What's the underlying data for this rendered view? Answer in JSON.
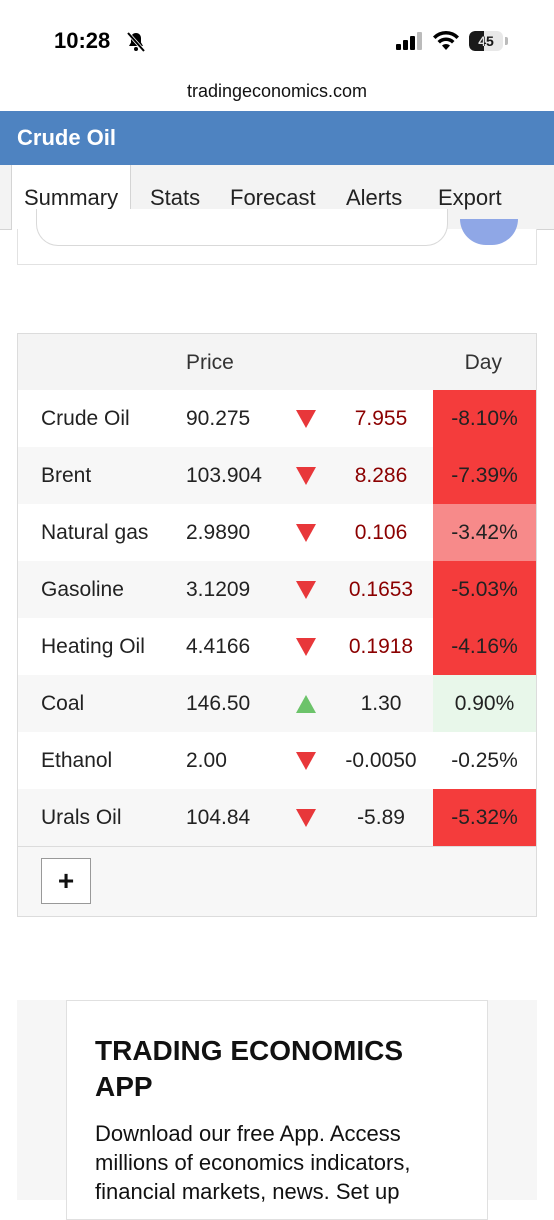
{
  "status_bar": {
    "time": "10:28",
    "battery": "45",
    "battery_level": 0.45
  },
  "browser": {
    "url": "tradingeconomics.com"
  },
  "header": {
    "title": "Crude Oil"
  },
  "tabs": [
    {
      "label": "Summary",
      "active": true
    },
    {
      "label": "Stats"
    },
    {
      "label": "Forecast"
    },
    {
      "label": "Alerts"
    },
    {
      "label": "Export"
    }
  ],
  "table": {
    "headers": {
      "price": "Price",
      "day": "Day"
    },
    "rows": [
      {
        "name": "Crude Oil",
        "price": "90.275",
        "direction": "down",
        "change": "7.955",
        "pct": "-8.10%",
        "pct_bg": "#f43c3c",
        "change_color": "#8b0000"
      },
      {
        "name": "Brent",
        "price": "103.904",
        "direction": "down",
        "change": "8.286",
        "pct": "-7.39%",
        "pct_bg": "#f43c3c",
        "change_color": "#8b0000"
      },
      {
        "name": "Natural gas",
        "price": "2.9890",
        "direction": "down",
        "change": "0.106",
        "pct": "-3.42%",
        "pct_bg": "#f78a8a",
        "change_color": "#8b0000"
      },
      {
        "name": "Gasoline",
        "price": "3.1209",
        "direction": "down",
        "change": "0.1653",
        "pct": "-5.03%",
        "pct_bg": "#f43c3c",
        "change_color": "#8b0000"
      },
      {
        "name": "Heating Oil",
        "price": "4.4166",
        "direction": "down",
        "change": "0.1918",
        "pct": "-4.16%",
        "pct_bg": "#f43c3c",
        "change_color": "#8b0000"
      },
      {
        "name": "Coal",
        "price": "146.50",
        "direction": "up",
        "change": "1.30",
        "pct": "0.90%",
        "pct_bg": "#e8f7ea",
        "change_color": "#222222"
      },
      {
        "name": "Ethanol",
        "price": "2.00",
        "direction": "down",
        "change": "-0.0050",
        "pct": "-0.25%",
        "pct_bg": "#ffffff",
        "change_color": "#222222"
      },
      {
        "name": "Urals Oil",
        "price": "104.84",
        "direction": "down",
        "change": "-5.89",
        "pct": "-5.32%",
        "pct_bg": "#f43c3c",
        "change_color": "#222222"
      }
    ],
    "add_label": "+"
  },
  "promo": {
    "title": "TRADING ECONOMICS APP",
    "text": "Download our free App. Access millions of economics indicators, financial markets, news. Set up"
  },
  "colors": {
    "header": "#4e83c1",
    "arrow_down": "#e8373a",
    "arrow_up": "#6cc36a"
  }
}
